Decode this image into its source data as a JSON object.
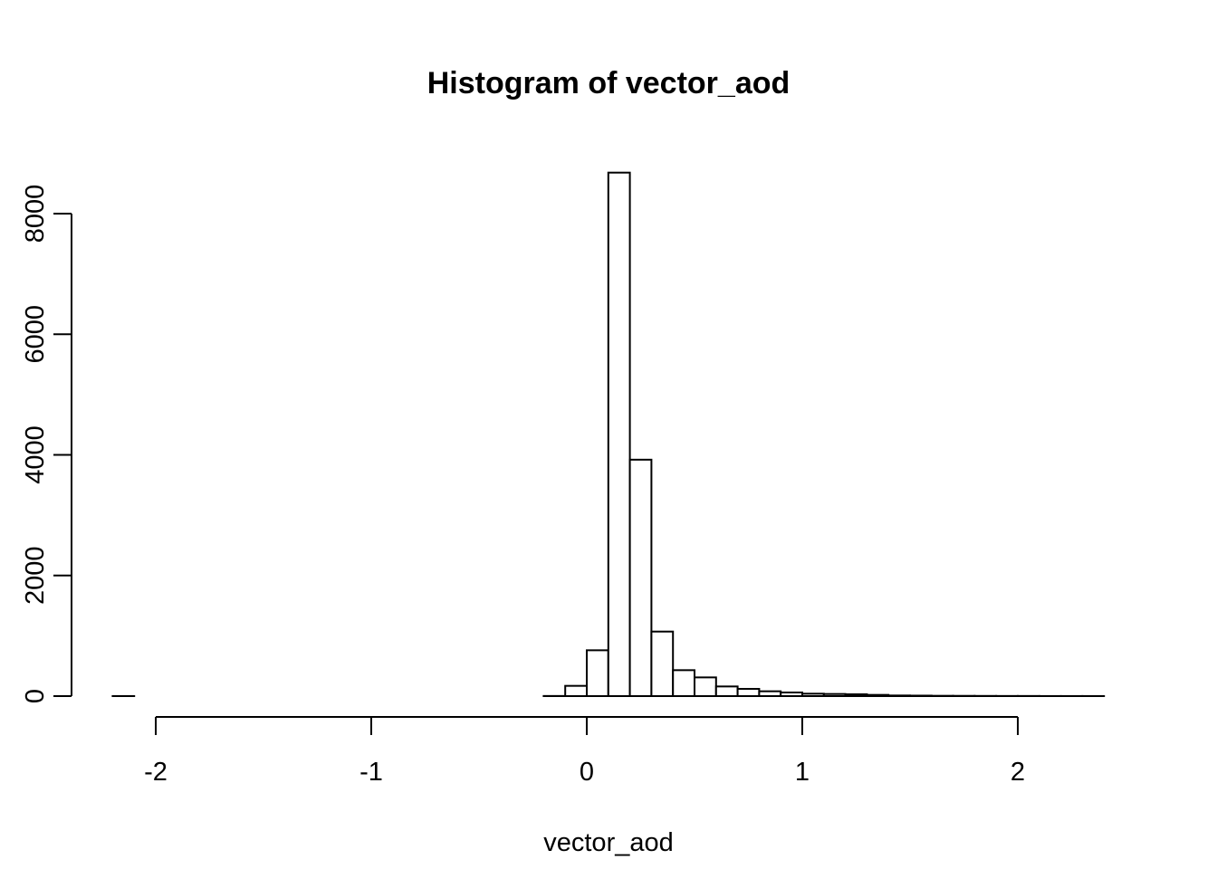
{
  "chart_data": {
    "type": "bar",
    "title": "Histogram of vector_aod",
    "xlabel": "vector_aod",
    "ylabel": "",
    "xlim": [
      -2.2,
      2.4
    ],
    "ylim": [
      0,
      8700
    ],
    "grid": false,
    "legend": "none",
    "x_ticks": [
      -2,
      -1,
      0,
      1,
      2
    ],
    "y_ticks": [
      0,
      2000,
      4000,
      6000,
      8000
    ],
    "bin_width": 0.1,
    "bins": [
      {
        "x0": -2.2,
        "x1": -2.1,
        "count": 1
      },
      {
        "x0": -2.1,
        "x1": -2.0,
        "count": 0
      },
      {
        "x0": -2.0,
        "x1": -1.9,
        "count": 0
      },
      {
        "x0": -1.9,
        "x1": -1.8,
        "count": 0
      },
      {
        "x0": -1.8,
        "x1": -1.7,
        "count": 0
      },
      {
        "x0": -1.7,
        "x1": -1.6,
        "count": 0
      },
      {
        "x0": -1.6,
        "x1": -1.5,
        "count": 0
      },
      {
        "x0": -1.5,
        "x1": -1.4,
        "count": 0
      },
      {
        "x0": -1.4,
        "x1": -1.3,
        "count": 0
      },
      {
        "x0": -1.3,
        "x1": -1.2,
        "count": 0
      },
      {
        "x0": -1.2,
        "x1": -1.1,
        "count": 0
      },
      {
        "x0": -1.1,
        "x1": -1.0,
        "count": 0
      },
      {
        "x0": -1.0,
        "x1": -0.9,
        "count": 0
      },
      {
        "x0": -0.9,
        "x1": -0.8,
        "count": 0
      },
      {
        "x0": -0.8,
        "x1": -0.7,
        "count": 0
      },
      {
        "x0": -0.7,
        "x1": -0.6,
        "count": 0
      },
      {
        "x0": -0.6,
        "x1": -0.5,
        "count": 0
      },
      {
        "x0": -0.5,
        "x1": -0.4,
        "count": 0
      },
      {
        "x0": -0.4,
        "x1": -0.3,
        "count": 0
      },
      {
        "x0": -0.3,
        "x1": -0.2,
        "count": 0
      },
      {
        "x0": -0.2,
        "x1": -0.1,
        "count": 2
      },
      {
        "x0": -0.1,
        "x1": 0.0,
        "count": 170
      },
      {
        "x0": 0.0,
        "x1": 0.1,
        "count": 760
      },
      {
        "x0": 0.1,
        "x1": 0.2,
        "count": 8680
      },
      {
        "x0": 0.2,
        "x1": 0.3,
        "count": 3920
      },
      {
        "x0": 0.3,
        "x1": 0.4,
        "count": 1070
      },
      {
        "x0": 0.4,
        "x1": 0.5,
        "count": 430
      },
      {
        "x0": 0.5,
        "x1": 0.6,
        "count": 310
      },
      {
        "x0": 0.6,
        "x1": 0.7,
        "count": 160
      },
      {
        "x0": 0.7,
        "x1": 0.8,
        "count": 120
      },
      {
        "x0": 0.8,
        "x1": 0.9,
        "count": 80
      },
      {
        "x0": 0.9,
        "x1": 1.0,
        "count": 60
      },
      {
        "x0": 1.0,
        "x1": 1.1,
        "count": 40
      },
      {
        "x0": 1.1,
        "x1": 1.2,
        "count": 35
      },
      {
        "x0": 1.2,
        "x1": 1.3,
        "count": 30
      },
      {
        "x0": 1.3,
        "x1": 1.4,
        "count": 20
      },
      {
        "x0": 1.4,
        "x1": 1.5,
        "count": 10
      },
      {
        "x0": 1.5,
        "x1": 1.6,
        "count": 8
      },
      {
        "x0": 1.6,
        "x1": 1.7,
        "count": 5
      },
      {
        "x0": 1.7,
        "x1": 1.8,
        "count": 4
      },
      {
        "x0": 1.8,
        "x1": 1.9,
        "count": 3
      },
      {
        "x0": 1.9,
        "x1": 2.0,
        "count": 2
      },
      {
        "x0": 2.0,
        "x1": 2.1,
        "count": 2
      },
      {
        "x0": 2.1,
        "x1": 2.2,
        "count": 1
      },
      {
        "x0": 2.2,
        "x1": 2.3,
        "count": 1
      },
      {
        "x0": 2.3,
        "x1": 2.4,
        "count": 1
      }
    ]
  }
}
